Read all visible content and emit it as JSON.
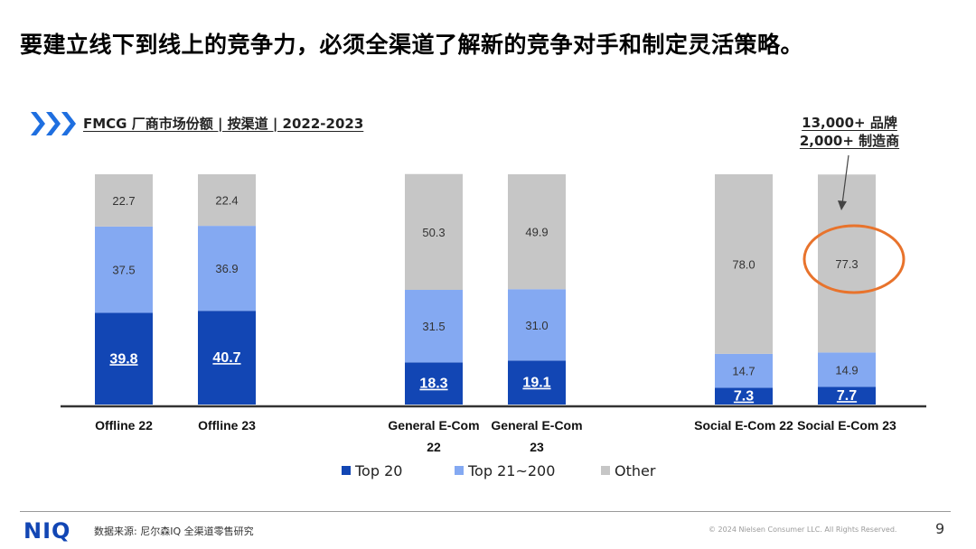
{
  "headline": "要建立线下到线上的竞争力，必须全渠道了解新的竞争对手和制定灵活策略。",
  "chart_header": {
    "icon": "triple-chevron-icon",
    "title": "FMCG 厂商市场份额 | 按渠道 | 2022-2023"
  },
  "callout": {
    "line1": "13,000+ 品牌",
    "line2": "2,000+ 制造商"
  },
  "colors": {
    "top20": "#1246b4",
    "top21_200": "#84a9f2",
    "other": "#c6c6c6",
    "highlight": "#e8732c",
    "chevron": "#1f6fe0"
  },
  "chart_data": {
    "type": "bar",
    "stacked": true,
    "unit": "%",
    "categories": [
      [
        "Offline 22"
      ],
      [
        "Offline 23"
      ],
      [
        "General E-Com",
        "22"
      ],
      [
        "General E-Com",
        "23"
      ],
      [
        "Social E-Com 22"
      ],
      [
        "Social E-Com 23"
      ]
    ],
    "series": [
      {
        "name": "Top 20",
        "values": [
          39.8,
          40.7,
          18.3,
          19.1,
          7.3,
          7.7
        ]
      },
      {
        "name": "Top 21~200",
        "values": [
          37.5,
          36.9,
          31.5,
          31.0,
          14.7,
          14.9
        ]
      },
      {
        "name": "Other",
        "values": [
          22.7,
          22.4,
          50.3,
          49.9,
          78.0,
          77.3
        ]
      }
    ],
    "ylim": [
      0,
      100
    ],
    "grid": false,
    "legend_position": "bottom",
    "highlighted": {
      "category_index": 5,
      "series": "Other"
    }
  },
  "footer": {
    "logo": "NIQ",
    "source": "数据来源: 尼尔森IQ 全渠道零售研究",
    "copyright": "© 2024 Nielsen Consumer LLC. All Rights Reserved.",
    "page": "9"
  }
}
